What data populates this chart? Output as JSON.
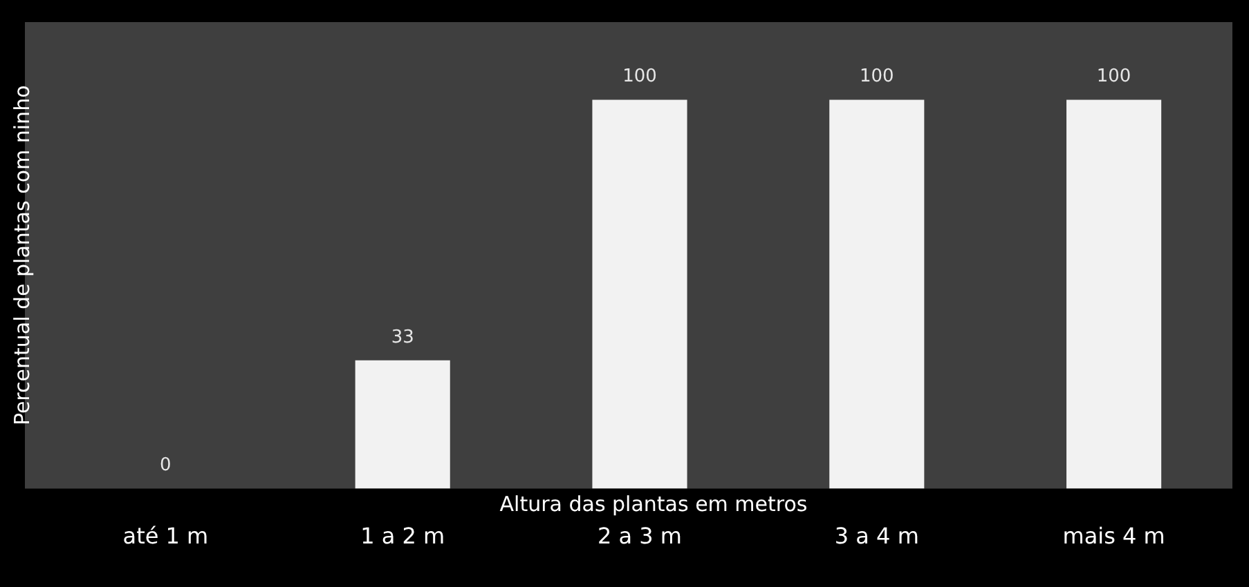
{
  "chart_data": {
    "type": "bar",
    "xlabel": "Altura das plantas em metros",
    "ylabel": "Percentual de plantas com ninho",
    "categories": [
      "até 1 m",
      "1 a 2 m",
      "2 a 3 m",
      "3 a 4 m",
      "mais 4 m"
    ],
    "values": [
      0,
      33,
      100,
      100,
      100
    ],
    "color": "#f2f2f2",
    "data_labels": true,
    "grid": false,
    "legend": false
  }
}
